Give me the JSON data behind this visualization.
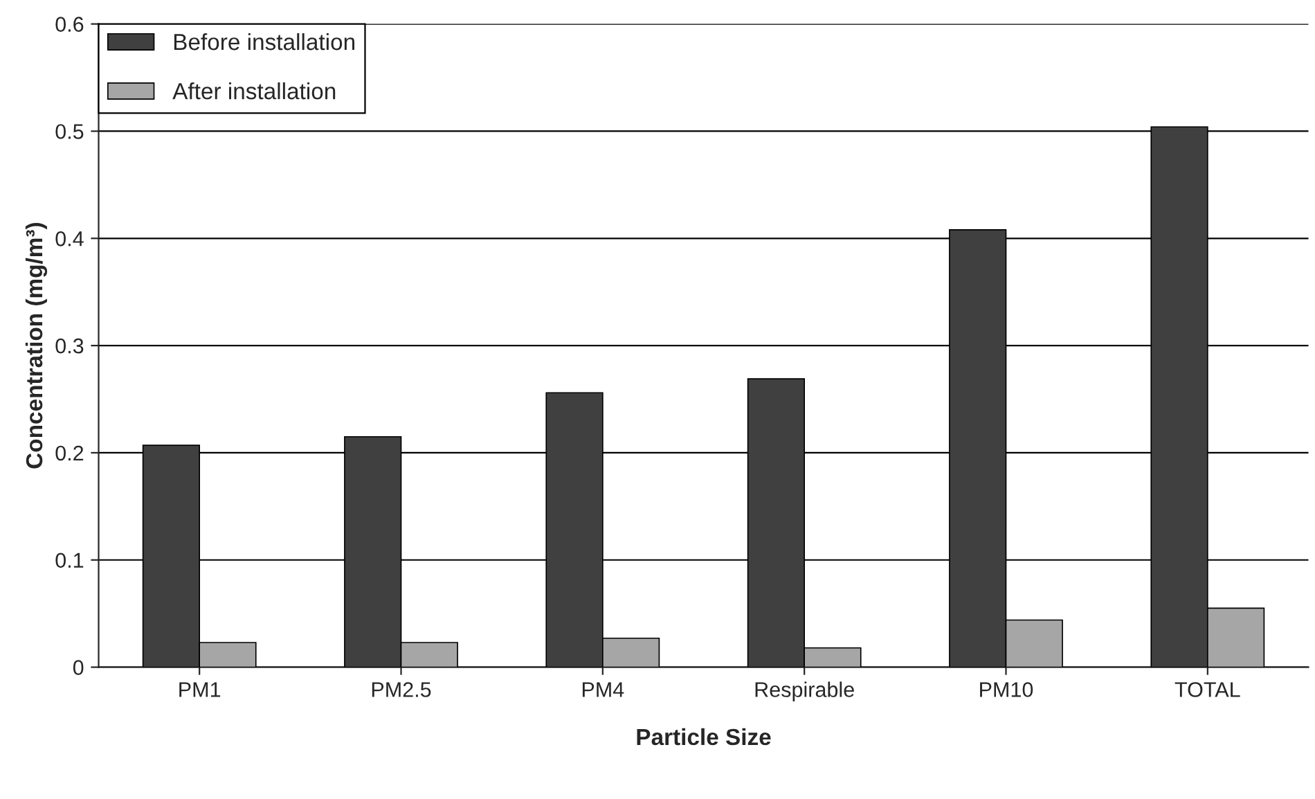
{
  "chart_data": {
    "type": "bar",
    "xlabel": "Particle Size",
    "ylabel": "Concentration (mg/m³)",
    "categories": [
      "PM1",
      "PM2.5",
      "PM4",
      "Respirable",
      "PM10",
      "TOTAL"
    ],
    "series": [
      {
        "name": "Before installation",
        "color": "#404040",
        "values": [
          0.207,
          0.215,
          0.256,
          0.269,
          0.408,
          0.504
        ]
      },
      {
        "name": "After installation",
        "color": "#a6a6a6",
        "values": [
          0.023,
          0.023,
          0.027,
          0.018,
          0.044,
          0.055
        ]
      }
    ],
    "ylim": [
      0,
      0.6
    ],
    "yticks": [
      0,
      0.1,
      0.2,
      0.3,
      0.4,
      0.5,
      0.6
    ],
    "grid": "y",
    "legend": "top left"
  }
}
